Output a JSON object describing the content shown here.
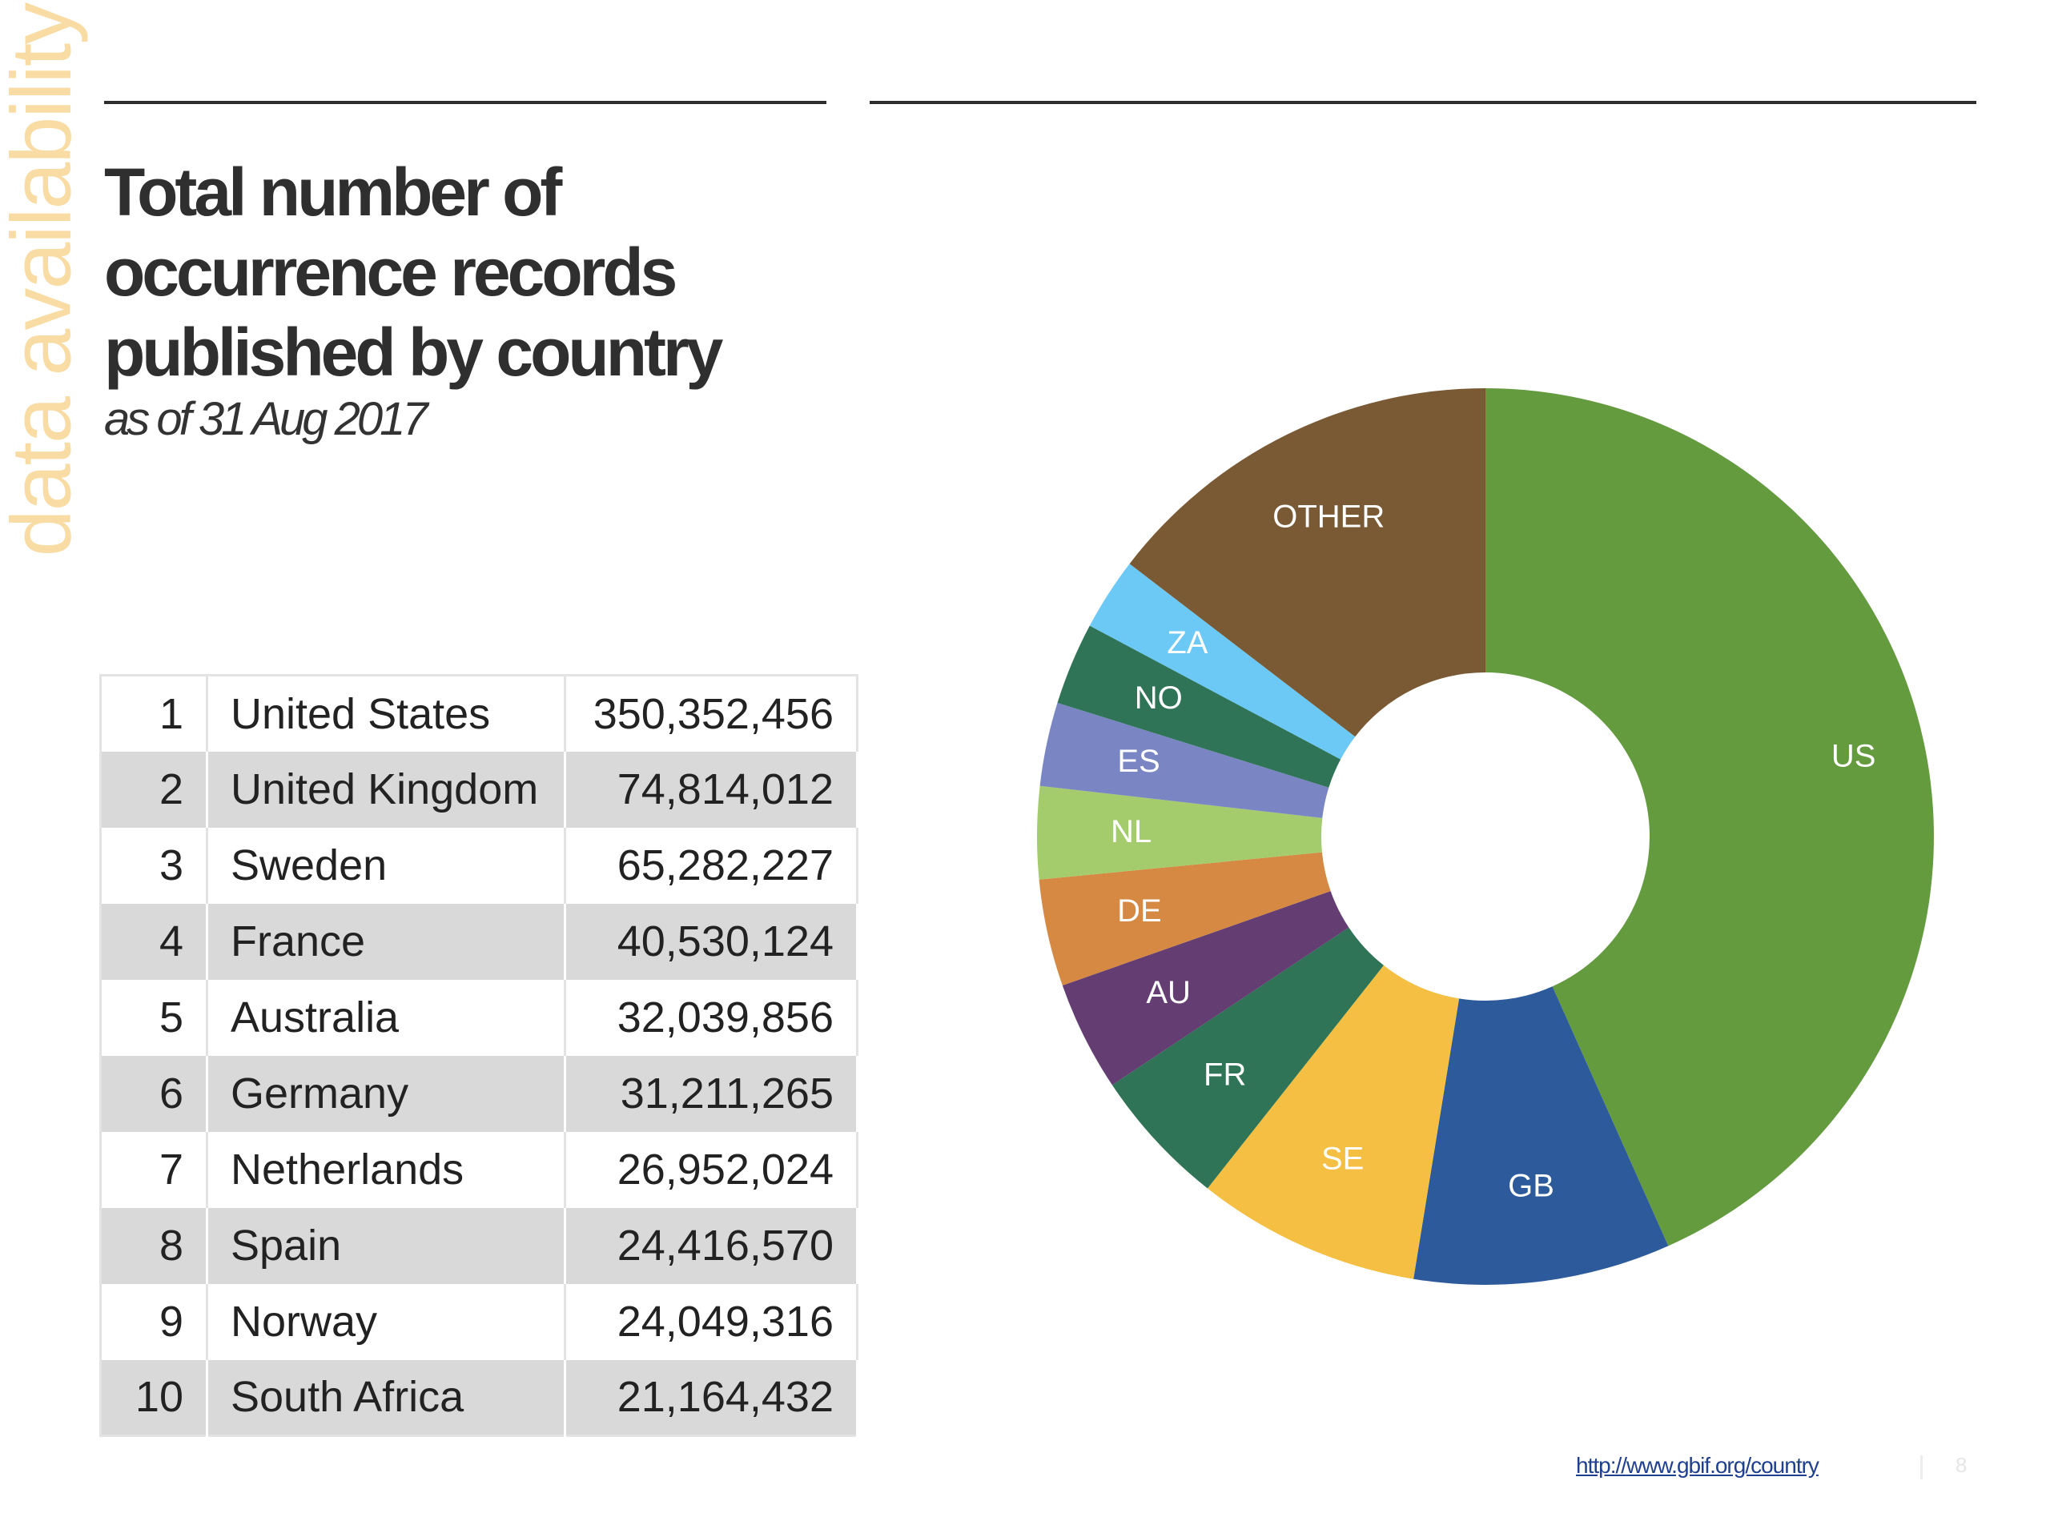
{
  "slide": {
    "side_label": "data availability",
    "title": "Total number of occurrence records published by country",
    "subtitle": "as of 31 Aug 2017",
    "source_url": "http://www.gbif.org/country",
    "page_number": "8"
  },
  "table": {
    "rows": [
      {
        "rank": "1",
        "country": "United States",
        "count": "350,352,456"
      },
      {
        "rank": "2",
        "country": "United Kingdom",
        "count": "74,814,012"
      },
      {
        "rank": "3",
        "country": "Sweden",
        "count": "65,282,227"
      },
      {
        "rank": "4",
        "country": "France",
        "count": "40,530,124"
      },
      {
        "rank": "5",
        "country": "Australia",
        "count": "32,039,856"
      },
      {
        "rank": "6",
        "country": "Germany",
        "count": "31,211,265"
      },
      {
        "rank": "7",
        "country": "Netherlands",
        "count": "26,952,024"
      },
      {
        "rank": "8",
        "country": "Spain",
        "count": "24,416,570"
      },
      {
        "rank": "9",
        "country": "Norway",
        "count": "24,049,316"
      },
      {
        "rank": "10",
        "country": "South Africa",
        "count": "21,164,432"
      }
    ]
  },
  "chart_data": {
    "type": "pie",
    "subtype": "donut",
    "title": "Total number of occurrence records published by country",
    "subtitle": "as of 31 Aug 2017",
    "slices": [
      {
        "label": "US",
        "value": 350352456,
        "color": "#649b3f"
      },
      {
        "label": "GB",
        "value": 74814012,
        "color": "#2c5a9a"
      },
      {
        "label": "SE",
        "value": 65282227,
        "color": "#f4bf42"
      },
      {
        "label": "FR",
        "value": 40530124,
        "color": "#2f7456"
      },
      {
        "label": "AU",
        "value": 32039856,
        "color": "#643e73"
      },
      {
        "label": "DE",
        "value": 31211265,
        "color": "#d58942"
      },
      {
        "label": "NL",
        "value": 26952024,
        "color": "#a4cc6c"
      },
      {
        "label": "ES",
        "value": 24416570,
        "color": "#7a86c4"
      },
      {
        "label": "NO",
        "value": 24049316,
        "color": "#2f7456"
      },
      {
        "label": "ZA",
        "value": 21164432,
        "color": "#6cc8f5"
      },
      {
        "label": "OTHER",
        "value": 118000000,
        "color": "#7a5a34"
      }
    ],
    "label_color": "#ffffff",
    "legend": "none"
  }
}
